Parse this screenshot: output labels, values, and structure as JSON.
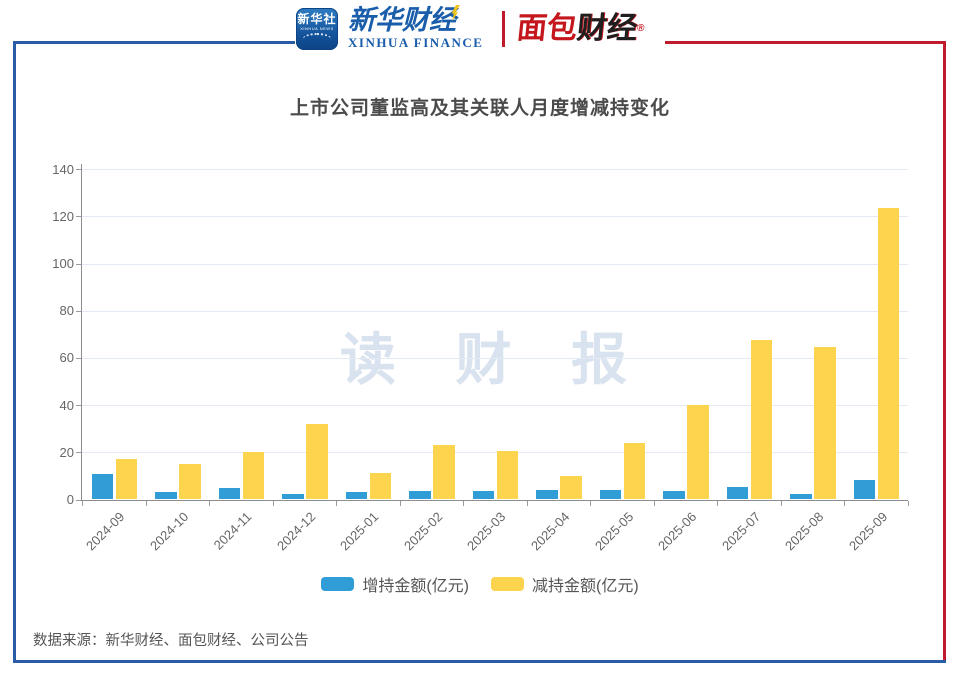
{
  "header": {
    "xinhua_news_icon": {
      "line1": "新华社",
      "line2": "XINHUA NEWS"
    },
    "xinhua_finance": {
      "cn": "新华财经",
      "en": "XINHUA FINANCE"
    },
    "mianbao_logo": {
      "cn_red": "面包",
      "cn_dark": "财经",
      "reg_mark": "®"
    }
  },
  "chart_data": {
    "type": "bar",
    "title": "上市公司董监高及其关联人月度增减持变化",
    "categories": [
      "2024-09",
      "2024-10",
      "2024-11",
      "2024-12",
      "2025-01",
      "2025-02",
      "2025-03",
      "2025-04",
      "2025-05",
      "2025-06",
      "2025-07",
      "2025-08",
      "2025-09"
    ],
    "series": [
      {
        "name": "增持金额(亿元)",
        "color": "#309dd7",
        "values": [
          11,
          3,
          4.8,
          2.4,
          3,
          3.5,
          3.7,
          4,
          4.2,
          3.6,
          5.3,
          2.5,
          8.2
        ]
      },
      {
        "name": "减持金额(亿元)",
        "color": "#fcd44e",
        "values": [
          17.3,
          15,
          20,
          31.8,
          11.4,
          23.2,
          20.4,
          10,
          23.8,
          40,
          67.5,
          64.8,
          123.5
        ]
      }
    ],
    "ylabel": "",
    "xlabel": "",
    "ylim": [
      0,
      140
    ],
    "ytick_step": 20,
    "grid": true,
    "legend_position": "bottom",
    "watermark": "读 财 报"
  },
  "footer": {
    "source": "数据来源：新华财经、面包财经、公司公告"
  },
  "colors": {
    "frame_blue": "#2b5ba6",
    "frame_red": "#bf1b2c",
    "increase_bar": "#309dd7",
    "decrease_bar": "#fcd44e",
    "gridline": "#e3eaf6",
    "axis": "#8c8c8c",
    "watermark": "#d9e2ef"
  }
}
